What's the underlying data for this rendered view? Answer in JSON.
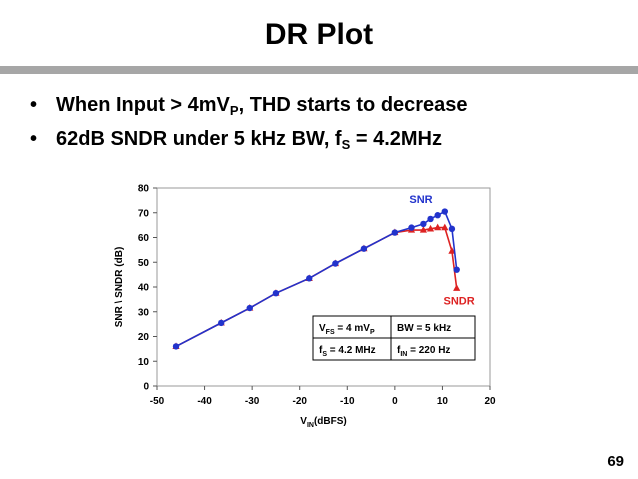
{
  "slide": {
    "title": "DR Plot",
    "bullets": [
      {
        "bullet_char": "•",
        "parts": [
          {
            "t": "When Input > 4mV"
          },
          {
            "t": "P",
            "sub": true
          },
          {
            "t": ", THD starts to decrease"
          }
        ]
      },
      {
        "bullet_char": "•",
        "parts": [
          {
            "t": "62dB SNDR under 5 kHz BW, f"
          },
          {
            "t": "S",
            "sub": true
          },
          {
            "t": " = 4.2MHz"
          }
        ]
      }
    ],
    "page_number": "69"
  },
  "chart_data": {
    "type": "line",
    "title": "",
    "xlabel": {
      "main": "V",
      "sub": "IN",
      "rest": "(dBFS)"
    },
    "ylabel": "SNR \\ SNDR (dB)",
    "xlim": [
      -50,
      20
    ],
    "ylim": [
      0,
      80
    ],
    "x_ticks": [
      -50,
      -40,
      -30,
      -20,
      -10,
      0,
      10,
      20
    ],
    "y_ticks": [
      0,
      10,
      20,
      30,
      40,
      50,
      60,
      70,
      80
    ],
    "grid": false,
    "series": [
      {
        "name": "SNR",
        "color": "#2233cc",
        "marker": "circle",
        "x": [
          -46,
          -36.5,
          -30.5,
          -25,
          -18,
          -12.5,
          -6.5,
          0,
          3.5,
          6,
          7.5,
          9,
          10.5,
          12,
          13
        ],
        "y": [
          16,
          25.5,
          31.5,
          37.5,
          43.5,
          49.5,
          55.5,
          62,
          64,
          65.5,
          67.5,
          69,
          70.5,
          63.5,
          47
        ]
      },
      {
        "name": "SNDR",
        "color": "#dd2222",
        "marker": "triangle",
        "x": [
          -46,
          -36.5,
          -30.5,
          -25,
          -18,
          -12.5,
          -6.5,
          0,
          3.5,
          6,
          7.5,
          9,
          10.5,
          12,
          13
        ],
        "y": [
          16,
          25.5,
          31.5,
          37.5,
          43.5,
          49.5,
          55.5,
          62,
          63,
          63,
          63.5,
          64,
          64,
          54.5,
          39.5
        ]
      }
    ],
    "annotations": {
      "table": [
        [
          {
            "main": "V",
            "sub": "FS",
            "rest": " = 4 mV",
            "sub2": "P"
          },
          {
            "main": "BW = 5 kHz"
          }
        ],
        [
          {
            "main": "f",
            "sub": "S",
            "rest": " = 4.2 MHz"
          },
          {
            "main": "f",
            "sub": "IN",
            "rest": " = 220 Hz"
          }
        ]
      ]
    }
  }
}
